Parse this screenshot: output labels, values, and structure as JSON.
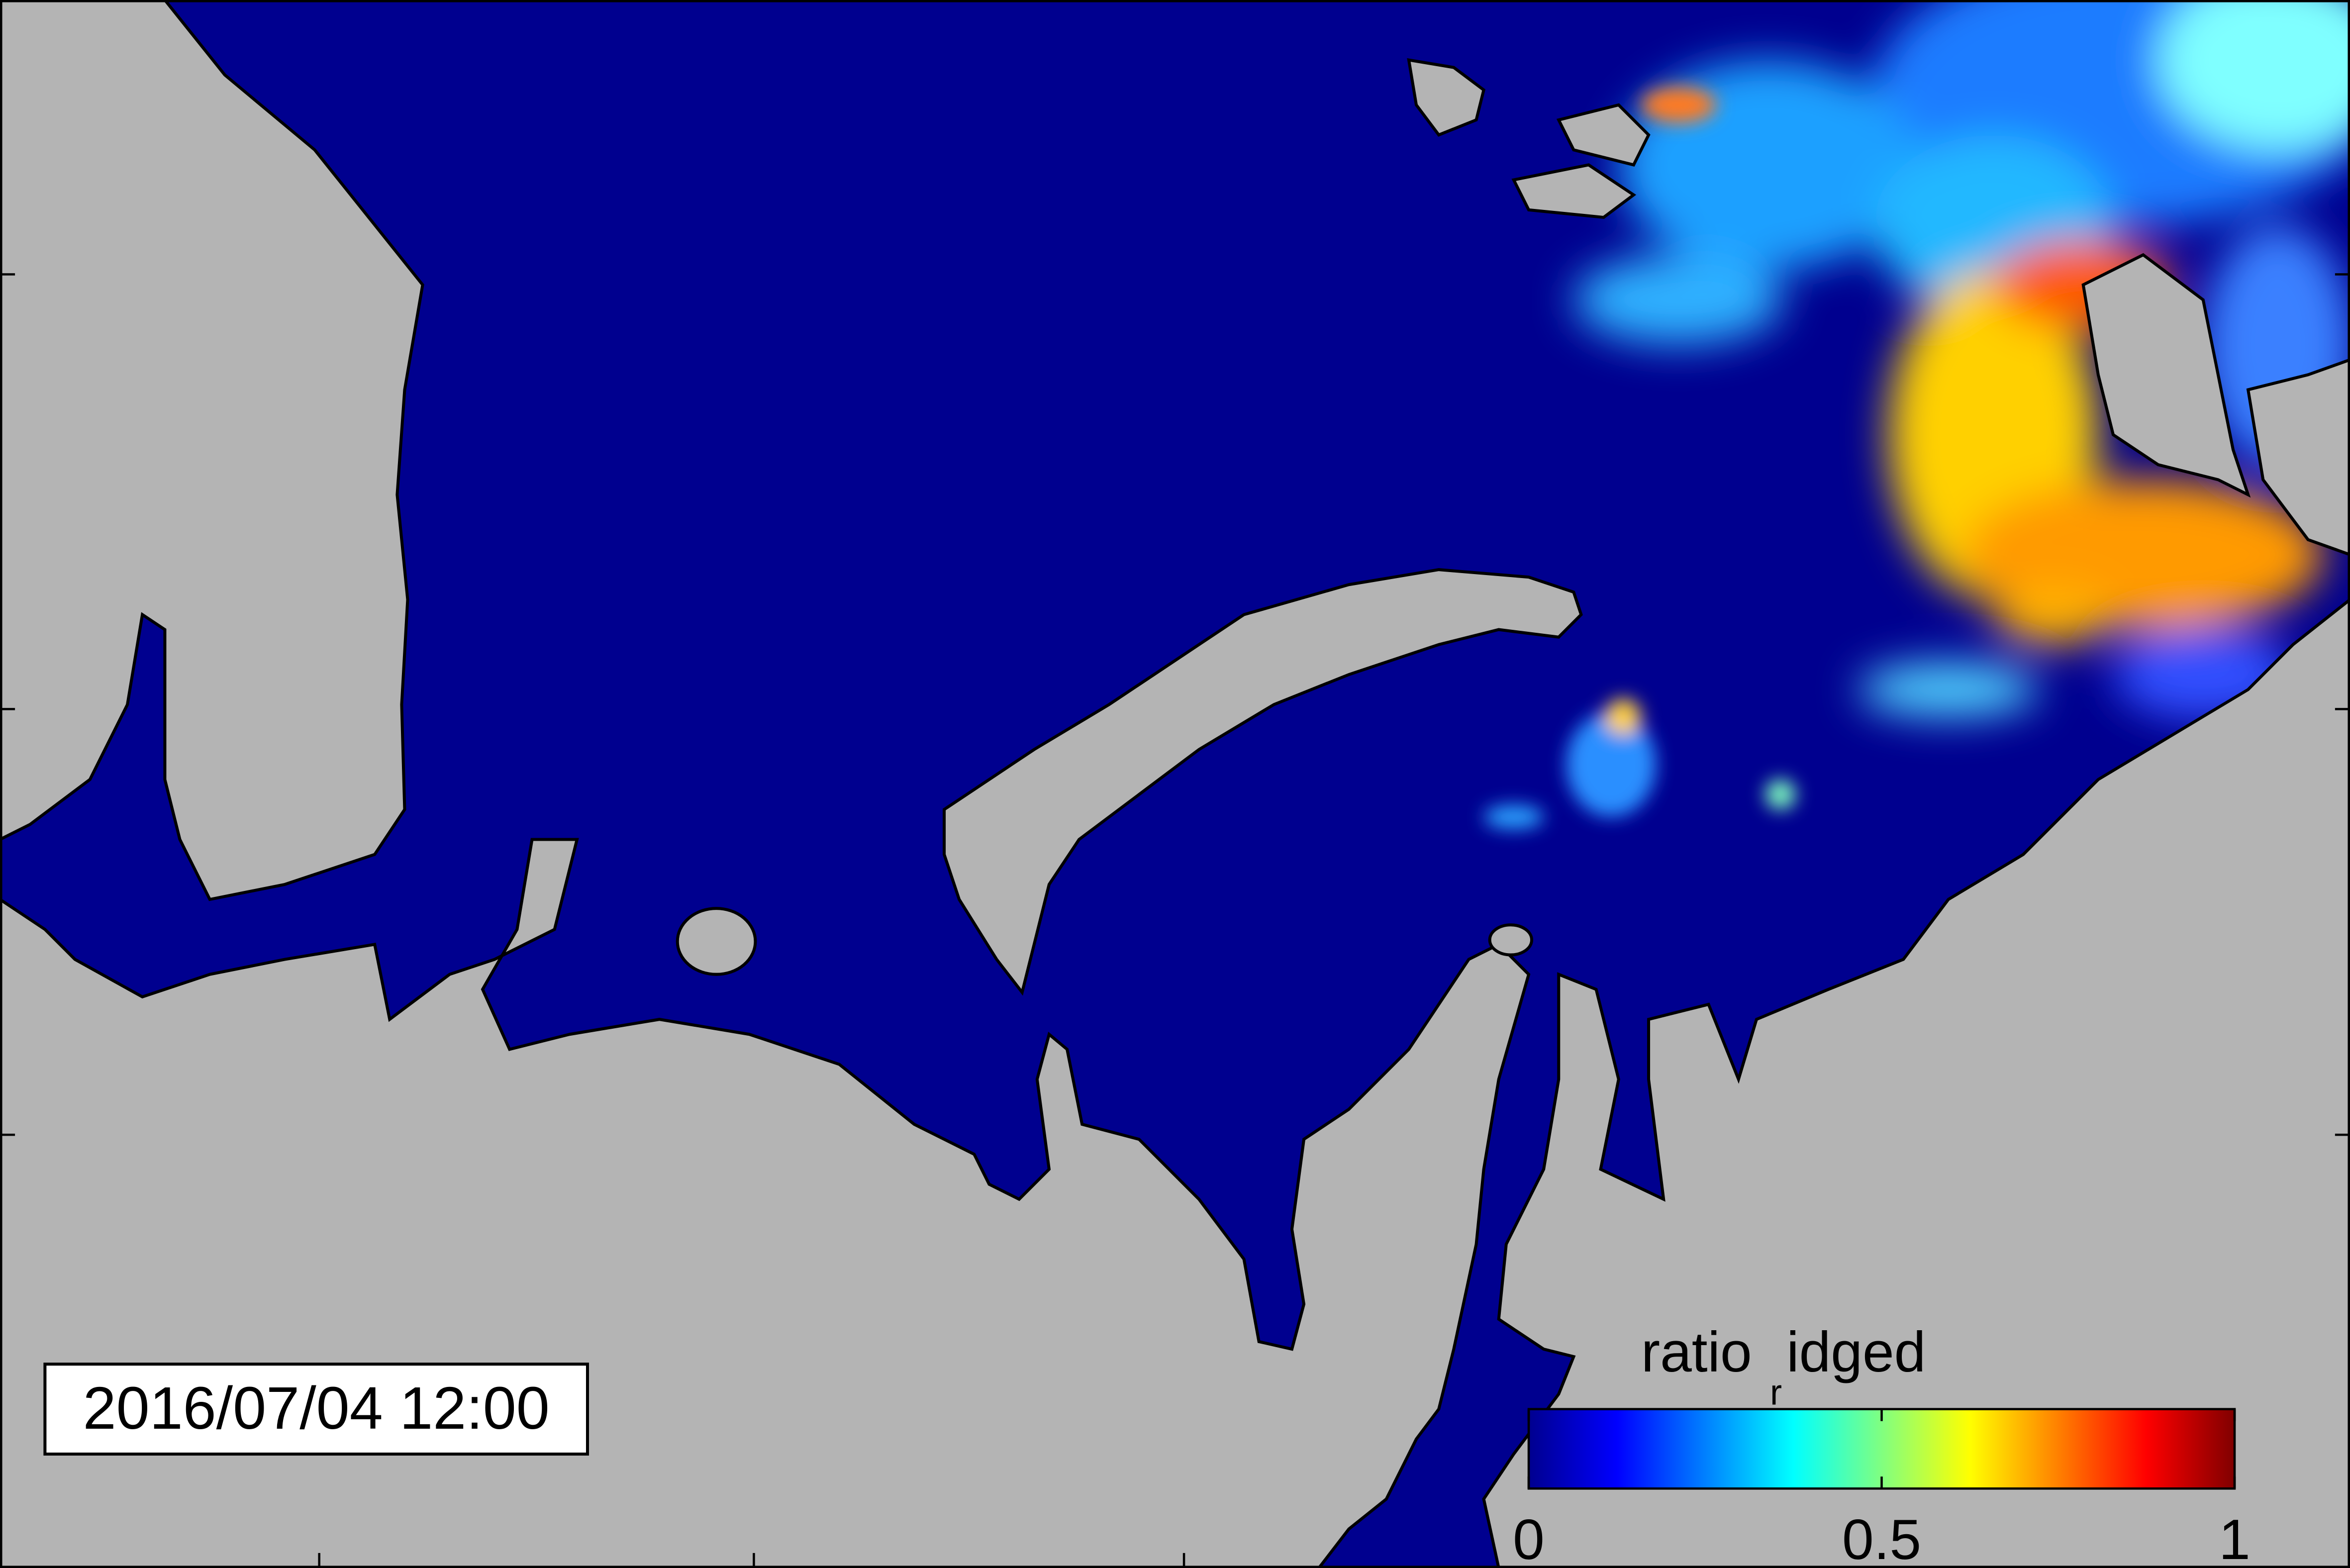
{
  "title": "2016/07/04 12:00",
  "colorbar": {
    "label": {
      "base": "ratio",
      "subscript": "r",
      "rest": "idged"
    },
    "colormap": "jet",
    "lim": [
      0,
      1
    ],
    "ticks": [
      0,
      0.5,
      1
    ]
  }
}
